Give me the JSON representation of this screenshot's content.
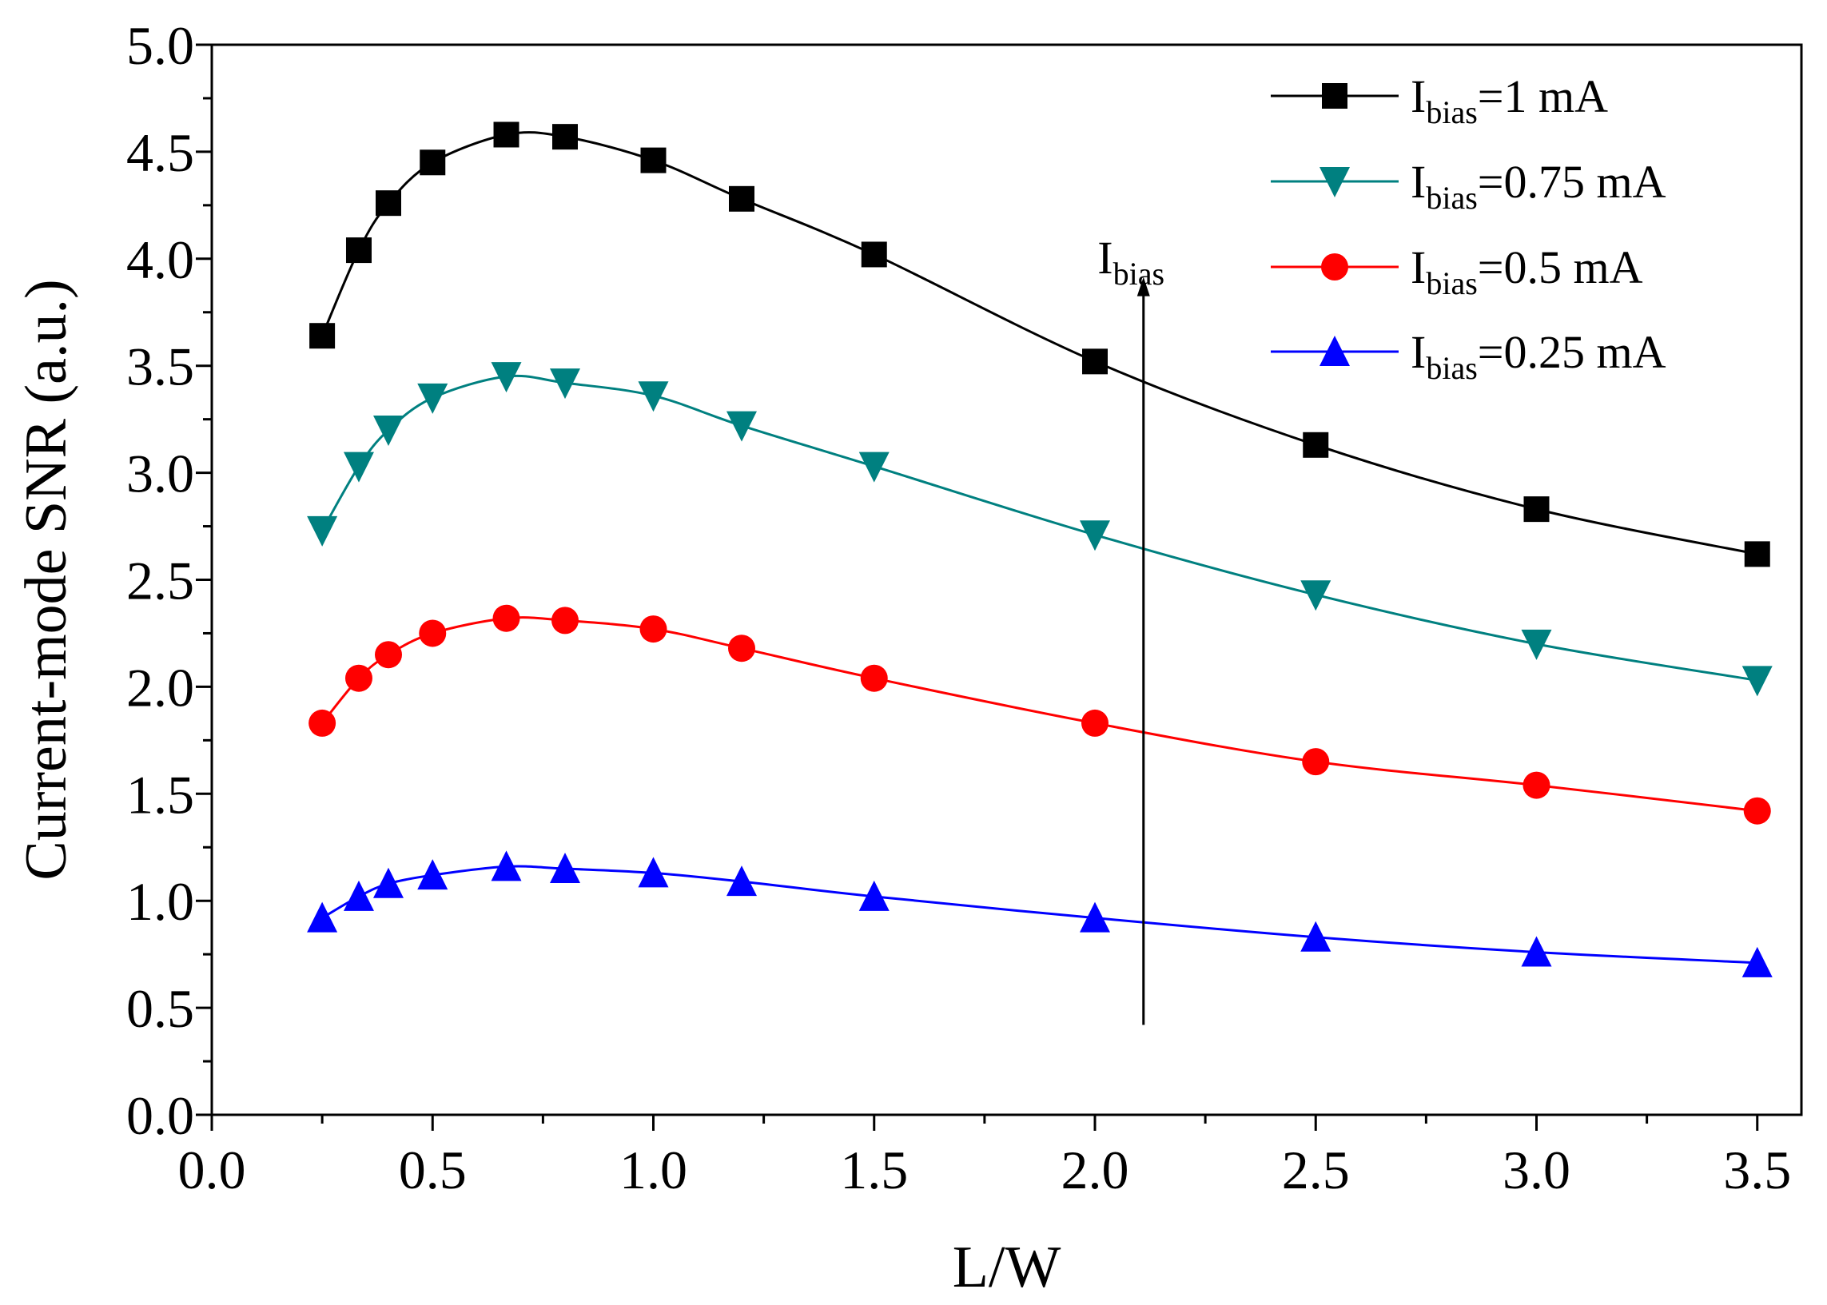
{
  "chart_data": {
    "type": "line",
    "title": "",
    "xlabel": "L/W",
    "ylabel": "Current-mode SNR (a.u.)",
    "xlim": [
      0.0,
      3.6
    ],
    "ylim": [
      0.0,
      5.0
    ],
    "xticks": [
      "0.0",
      "0.5",
      "1.0",
      "1.5",
      "2.0",
      "2.5",
      "3.0",
      "3.5"
    ],
    "yticks": [
      "0.0",
      "0.5",
      "1.0",
      "1.5",
      "2.0",
      "2.5",
      "3.0",
      "3.5",
      "4.0",
      "4.5",
      "5.0"
    ],
    "grid": false,
    "legend_position": "top-right",
    "x": [
      0.25,
      0.333,
      0.4,
      0.5,
      0.667,
      0.8,
      1.0,
      1.2,
      1.5,
      2.0,
      2.5,
      3.0,
      3.5
    ],
    "series": [
      {
        "name_main": "I",
        "name_sub": "bias",
        "name_rest": "=1 mA",
        "color": "#000000",
        "marker": "square",
        "values": [
          3.64,
          4.04,
          4.26,
          4.45,
          4.58,
          4.57,
          4.46,
          4.28,
          4.02,
          3.52,
          3.13,
          2.83,
          2.62
        ]
      },
      {
        "name_main": "I",
        "name_sub": "bias",
        "name_rest": "=0.75 mA",
        "color": "#008080",
        "marker": "triangle-down",
        "values": [
          2.73,
          3.03,
          3.2,
          3.35,
          3.45,
          3.42,
          3.36,
          3.22,
          3.03,
          2.71,
          2.43,
          2.2,
          2.03
        ]
      },
      {
        "name_main": "I",
        "name_sub": "bias",
        "name_rest": "=0.5 mA",
        "color": "#ff0000",
        "marker": "circle",
        "values": [
          1.83,
          2.04,
          2.15,
          2.25,
          2.32,
          2.31,
          2.27,
          2.18,
          2.04,
          1.83,
          1.65,
          1.54,
          1.42
        ]
      },
      {
        "name_main": "I",
        "name_sub": "bias",
        "name_rest": "=0.25 mA",
        "color": "#0000ff",
        "marker": "triangle-up",
        "values": [
          0.92,
          1.02,
          1.08,
          1.12,
          1.16,
          1.15,
          1.13,
          1.09,
          1.02,
          0.92,
          0.83,
          0.76,
          0.71
        ]
      }
    ],
    "annotation": {
      "main": "I",
      "sub": "bias",
      "arrow_x": 2.11,
      "arrow_y_from": 0.42,
      "arrow_y_to": 3.9,
      "text_x": 2.1,
      "text_y": 4.0
    }
  }
}
